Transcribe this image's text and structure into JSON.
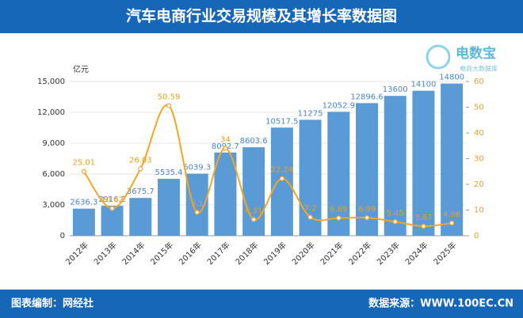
{
  "header": {
    "title": "汽车电商行业交易规模及其增长率数据图"
  },
  "logo": {
    "name": "电数宝",
    "subtitle": "电商大数据库"
  },
  "chart_data": {
    "type": "bar",
    "y_label": "亿元",
    "categories": [
      "2012年",
      "2013年",
      "2014年",
      "2015年",
      "2016年",
      "2017年",
      "2018年",
      "2019年",
      "2020年",
      "2021年",
      "2022年",
      "2023年",
      "2024年",
      "2025年"
    ],
    "series": [
      {
        "type": "bar",
        "color": "#5b9bd5",
        "axis": "y",
        "values": [
          2636.3,
          2916.2,
          3675.7,
          5535.4,
          6039.3,
          8092.7,
          8603.6,
          10517.5,
          11275,
          12052.9,
          12896.6,
          13600,
          14100,
          14800
        ]
      },
      {
        "type": "line",
        "color": "#f5a623",
        "axis": "y2",
        "values": [
          25.01,
          10.62,
          26.03,
          50.59,
          9.1,
          34,
          6.31,
          22.24,
          7.2,
          6.89,
          6.99,
          5.45,
          3.67,
          4.96
        ]
      }
    ],
    "ylim": [
      0,
      15000
    ],
    "yticks": [
      0,
      {
        "value": 3000,
        "label": "3,000"
      },
      {
        "value": 6000,
        "label": "6,000"
      },
      {
        "value": 9000,
        "label": "9,000"
      },
      {
        "value": 12000,
        "label": "12,000"
      },
      {
        "value": 15000,
        "label": "15,000"
      }
    ],
    "y2lim": [
      0,
      60
    ],
    "y2ticks": [
      0,
      10,
      20,
      30,
      40,
      50,
      60
    ]
  },
  "footer": {
    "left": "图表编制：网经社",
    "right": "数据来源：WWW.100EC.CN"
  }
}
